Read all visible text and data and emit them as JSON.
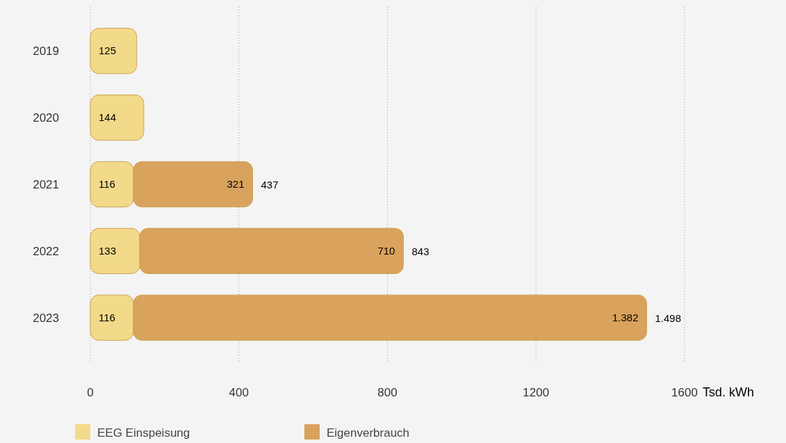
{
  "chart_data": {
    "type": "bar",
    "orientation": "horizontal",
    "stacked": true,
    "categories": [
      "2019",
      "2020",
      "2021",
      "2022",
      "2023"
    ],
    "series": [
      {
        "name": "EEG Einspeisung",
        "color": "#f3d98a",
        "values": [
          125,
          144,
          116,
          133,
          116
        ],
        "value_labels": [
          "125",
          "144",
          "116",
          "133",
          "116"
        ]
      },
      {
        "name": "Eigenverbrauch",
        "color": "#d9a35e",
        "values": [
          null,
          null,
          321,
          710,
          1382
        ],
        "value_labels": [
          null,
          null,
          "321",
          "710",
          "1.382"
        ]
      }
    ],
    "totals": [
      null,
      null,
      "437",
      "843",
      "1.498"
    ],
    "xlim": [
      0,
      1600
    ],
    "xticks": [
      0,
      400,
      800,
      1200,
      1600
    ],
    "xlabel": "Tsd. kWh",
    "grid": "x",
    "legend": "bottom left"
  }
}
